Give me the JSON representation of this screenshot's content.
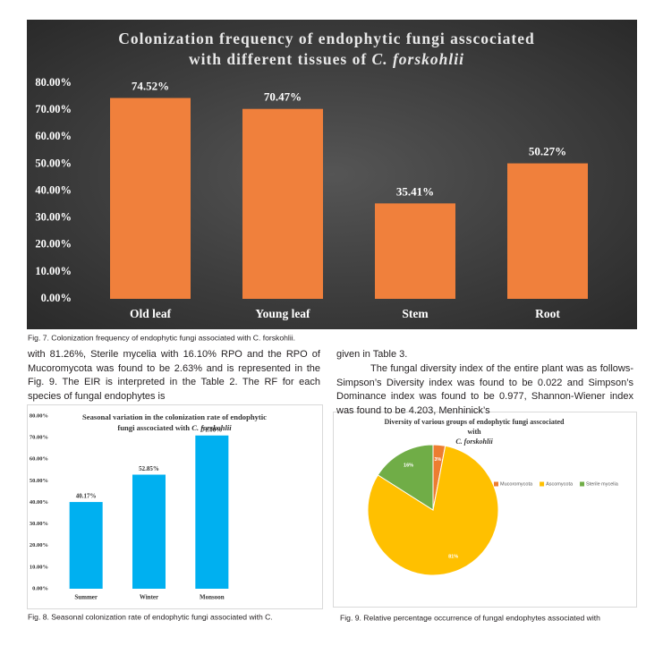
{
  "chart_data": [
    {
      "type": "bar",
      "title": [
        "Colonization frequency of endophytic fungi asscociated",
        "with different tissues of",
        "C. forskohlii"
      ],
      "categories": [
        "Old leaf",
        "Young leaf",
        "Stem",
        "Root"
      ],
      "values": [
        74.52,
        70.47,
        35.41,
        50.27
      ],
      "value_labels": [
        "74.52%",
        "70.47%",
        "35.41%",
        "50.27%"
      ],
      "color": "#f0803c",
      "ylim": [
        0,
        80
      ],
      "yticks": [
        {
          "value": 0,
          "label": "0.00%"
        },
        {
          "value": 10,
          "label": "10.00%"
        },
        {
          "value": 20,
          "label": "20.00%"
        },
        {
          "value": 30,
          "label": "30.00%"
        },
        {
          "value": 40,
          "label": "40.00%"
        },
        {
          "value": 50,
          "label": "50.00%"
        },
        {
          "value": 60,
          "label": "60.00%"
        },
        {
          "value": 70,
          "label": "70.00%"
        },
        {
          "value": 80,
          "label": "80.00%"
        }
      ]
    },
    {
      "type": "bar",
      "title": [
        "Seasonal variation in the colonization rate of endophytic",
        "fungi asscociated with",
        "C. forskohlii"
      ],
      "categories": [
        "Summer",
        "Winter",
        "Monsoon"
      ],
      "values": [
        40.17,
        52.85,
        71.0
      ],
      "value_labels": [
        "40.17%",
        "52.85%",
        "71.00%"
      ],
      "color": "#00b0f0",
      "ylim": [
        0,
        80
      ],
      "yticks": [
        {
          "value": 0,
          "label": "0.00%"
        },
        {
          "value": 10,
          "label": "10.00%"
        },
        {
          "value": 20,
          "label": "20.00%"
        },
        {
          "value": 30,
          "label": "30.00%"
        },
        {
          "value": 40,
          "label": "40.00%"
        },
        {
          "value": 50,
          "label": "50.00%"
        },
        {
          "value": 60,
          "label": "60.00%"
        },
        {
          "value": 70,
          "label": "70.00%"
        },
        {
          "value": 80,
          "label": "80.00%"
        }
      ]
    },
    {
      "type": "pie",
      "title": [
        "Diversity of various groups of endophytic fungi asscociated",
        "with",
        "C. forskohlii"
      ],
      "categories": [
        "Mucoromycota",
        "Ascomycota",
        "Sterile mycelia"
      ],
      "values": [
        3,
        81,
        16
      ],
      "value_labels": [
        "3%",
        "81%",
        "16%"
      ],
      "colors": [
        "#ed7d31",
        "#ffc000",
        "#70ad47"
      ],
      "legend": "right"
    }
  ],
  "captions": [
    "Fig. 7. Colonization frequency of endophytic fungi associated with C. forskohlii.",
    "Fig. 8. Seasonal colonization rate of endophytic fungi associated with C.",
    "Fig. 9. Relative percentage occurrence of fungal endophytes associated with"
  ],
  "paragraphs": [
    "with 81.26%, Sterile mycelia with 16.10% RPO and the RPO of Mucoromycota was found to be 2.63% and is represented in the Fig. 9. The EIR is interpreted in the Table 2. The RF for each species of fungal endophytes is",
    "given in Table 3.",
    "The fungal diversity index of the entire plant was as follows-Simpson’s Diversity index was found to be 0.022 and Simpson’s Dominance index was found to be 0.977, Shannon-Wiener index was found to be 4.203, Menhinick’s"
  ]
}
